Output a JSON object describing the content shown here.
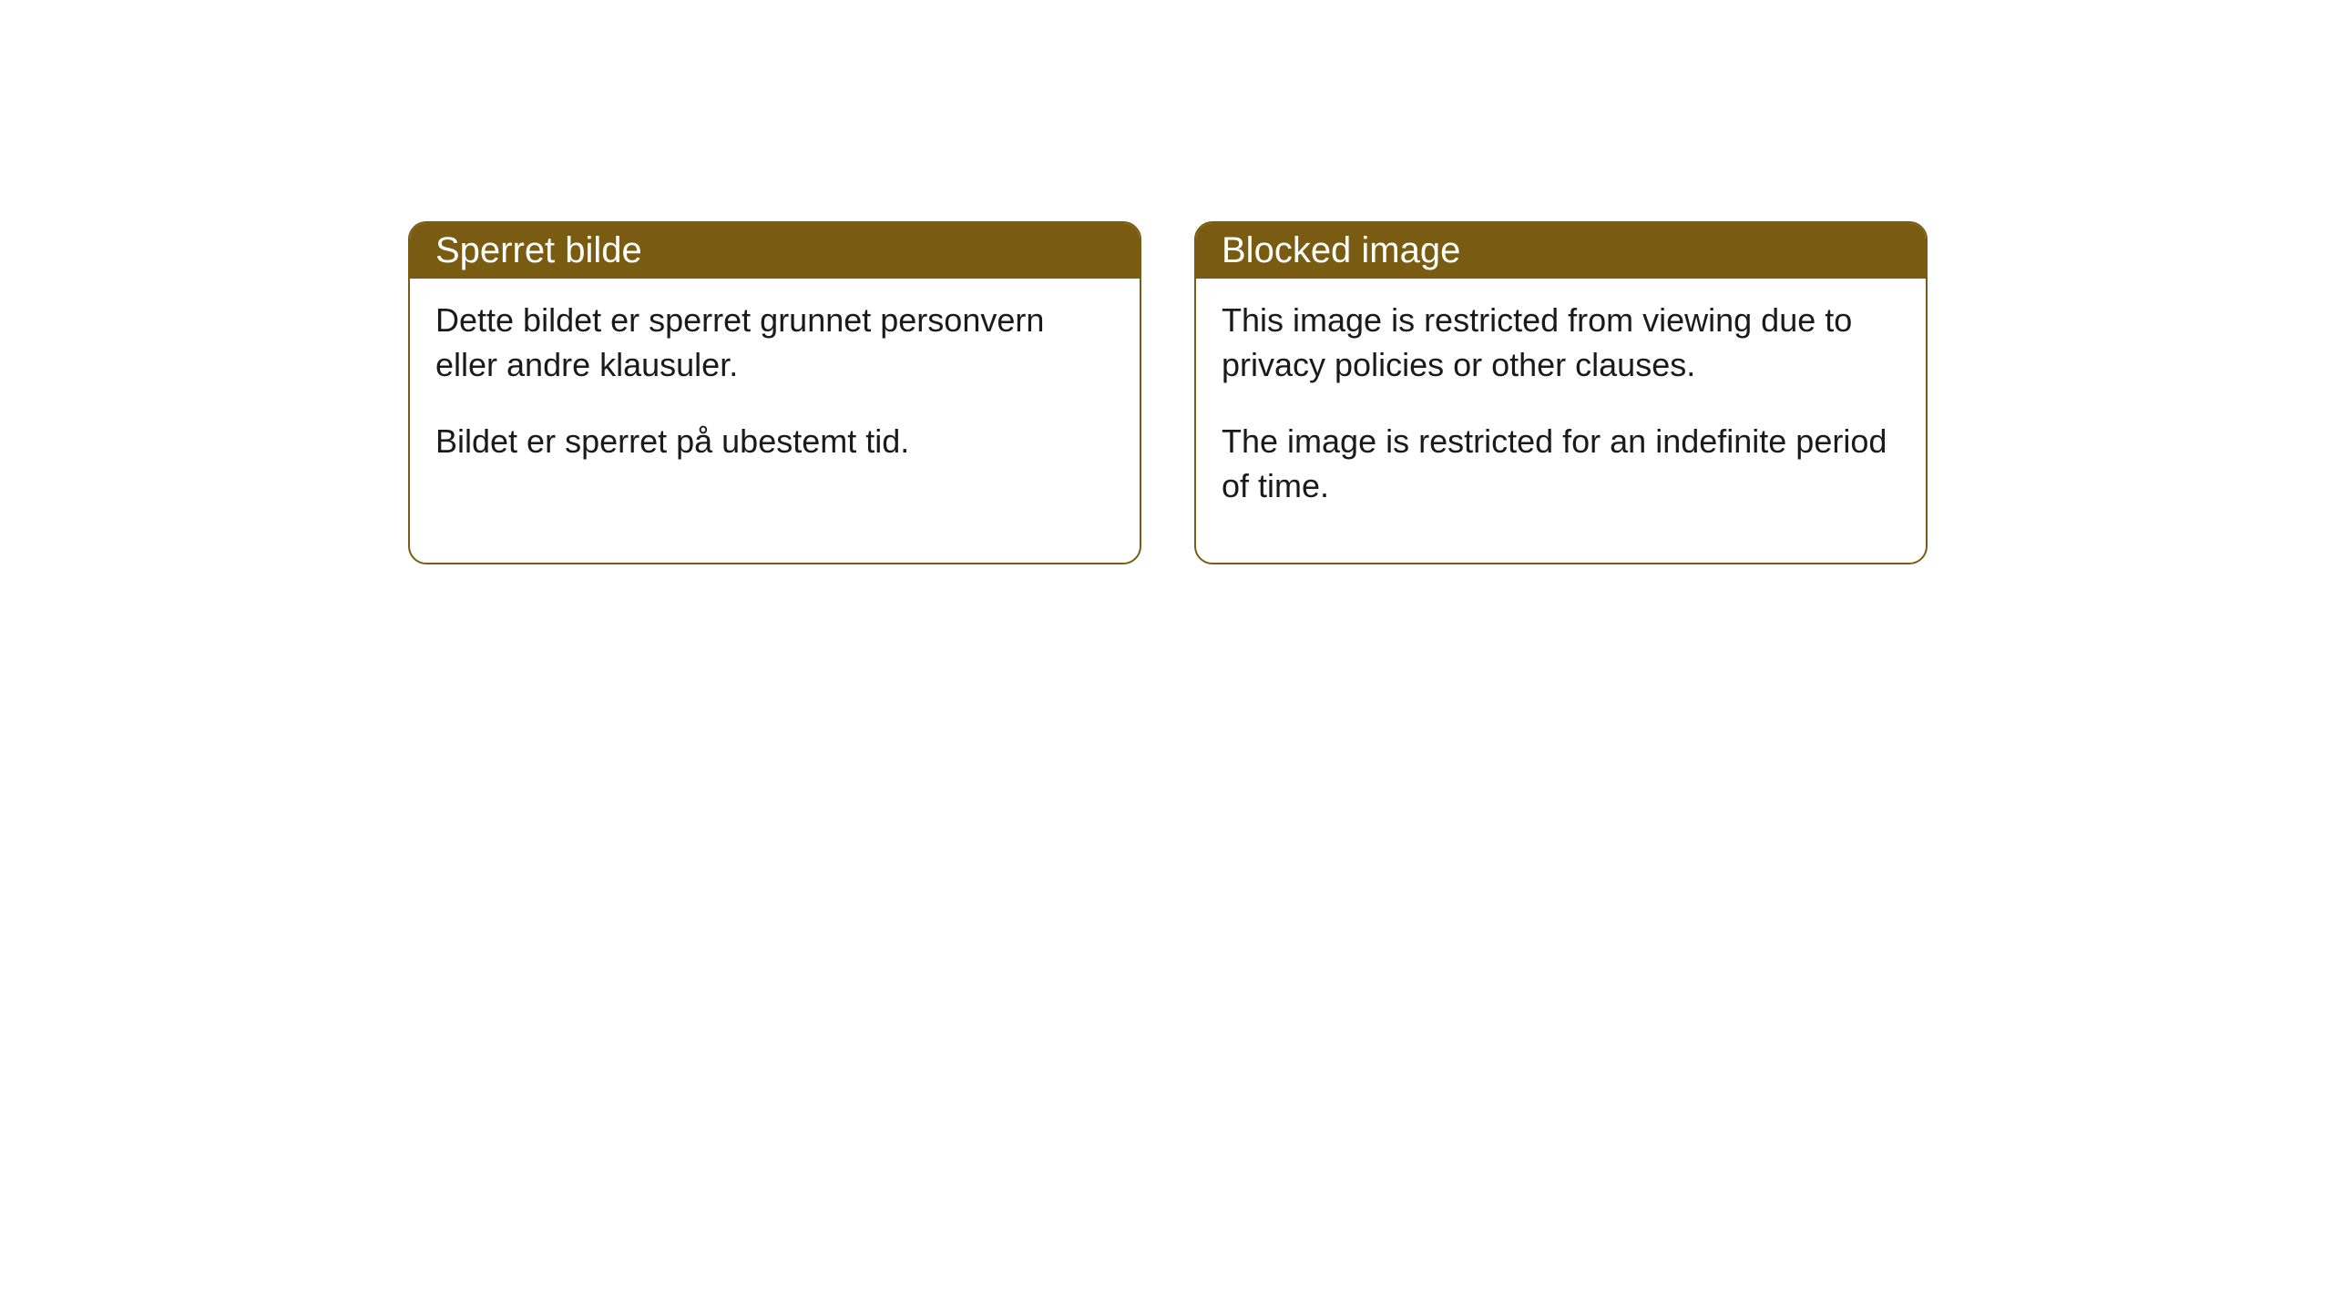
{
  "cards": [
    {
      "title": "Sperret bilde",
      "paragraph1": "Dette bildet er sperret grunnet personvern eller andre klausuler.",
      "paragraph2": "Bildet er sperret på ubestemt tid."
    },
    {
      "title": "Blocked image",
      "paragraph1": "This image is restricted from viewing due to privacy policies or other clauses.",
      "paragraph2": "The image is restricted for an indefinite period of time."
    }
  ],
  "styles": {
    "header_background": "#7a5b12",
    "header_text_color": "#ffffff",
    "border_color": "#7a5b12",
    "body_background": "#ffffff",
    "body_text_color": "#1a1a1a",
    "border_radius": 20,
    "title_fontsize": 40,
    "body_fontsize": 36
  }
}
